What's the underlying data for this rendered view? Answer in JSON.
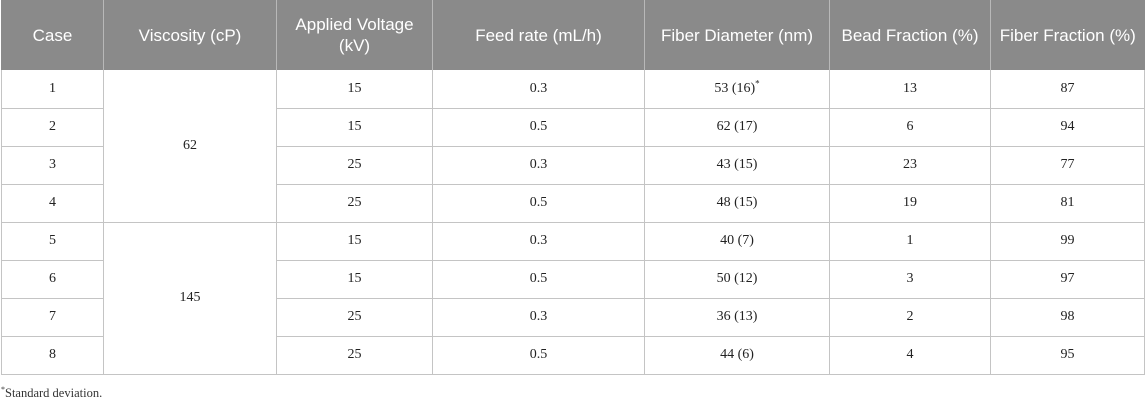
{
  "table": {
    "headers": [
      "Case",
      "Viscosity (cP)",
      "Applied Voltage (kV)",
      "Feed rate (mL/h)",
      "Fiber Diameter (nm)",
      "Bead Fraction (%)",
      "Fiber Fraction (%)"
    ],
    "viscosity_groups": [
      "62",
      "145"
    ],
    "rows": [
      {
        "case": "1",
        "voltage": "15",
        "feed": "0.3",
        "diameter": "53 (16)",
        "diameter_marker": "*",
        "bead": "13",
        "fiber": "87"
      },
      {
        "case": "2",
        "voltage": "15",
        "feed": "0.5",
        "diameter": "62 (17)",
        "diameter_marker": "",
        "bead": "6",
        "fiber": "94"
      },
      {
        "case": "3",
        "voltage": "25",
        "feed": "0.3",
        "diameter": "43 (15)",
        "diameter_marker": "",
        "bead": "23",
        "fiber": "77"
      },
      {
        "case": "4",
        "voltage": "25",
        "feed": "0.5",
        "diameter": "48 (15)",
        "diameter_marker": "",
        "bead": "19",
        "fiber": "81"
      },
      {
        "case": "5",
        "voltage": "15",
        "feed": "0.3",
        "diameter": "40 (7)",
        "diameter_marker": "",
        "bead": "1",
        "fiber": "99"
      },
      {
        "case": "6",
        "voltage": "15",
        "feed": "0.5",
        "diameter": "50 (12)",
        "diameter_marker": "",
        "bead": "3",
        "fiber": "97"
      },
      {
        "case": "7",
        "voltage": "25",
        "feed": "0.3",
        "diameter": "36 (13)",
        "diameter_marker": "",
        "bead": "2",
        "fiber": "98"
      },
      {
        "case": "8",
        "voltage": "25",
        "feed": "0.5",
        "diameter": "44 (6)",
        "diameter_marker": "",
        "bead": "4",
        "fiber": "95"
      }
    ]
  },
  "footnote": {
    "marker": "*",
    "text": "Standard deviation."
  }
}
